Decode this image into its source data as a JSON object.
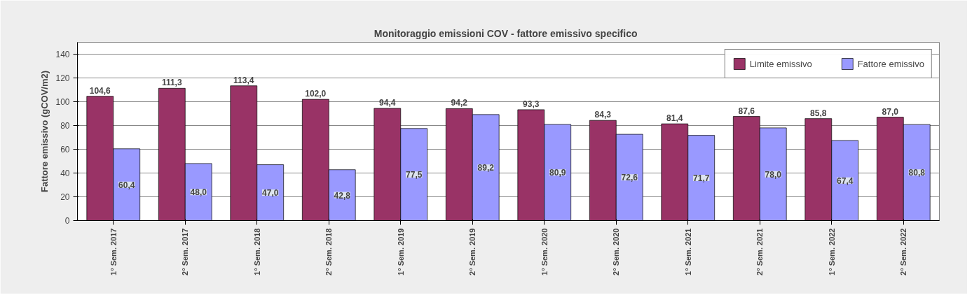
{
  "chart_data": {
    "type": "bar",
    "title": "Monitoraggio  emissioni COV  - fattore emissivo specifico",
    "ylabel": "Fattore emissivo (gCOV/m2)",
    "categories": [
      "1° Sem. 2017",
      "2° Sem. 2017",
      "1° Sem. 2018",
      "2° Sem. 2018",
      "1° Sem. 2019",
      "2° Sem. 2019",
      "1° Sem. 2020",
      "2° Sem. 2020",
      "1° Sem. 2021",
      "2° Sem. 2021",
      "1° Sem. 2022",
      "2° Sem. 2022"
    ],
    "series": [
      {
        "name": "Limite emissivo",
        "color": "#993366",
        "values": [
          104.6,
          111.3,
          113.4,
          102.0,
          94.4,
          94.2,
          93.3,
          84.3,
          81.4,
          87.6,
          85.8,
          87.0
        ],
        "value_labels": [
          "104,6",
          "111,3",
          "113,4",
          "102,0",
          "94,4",
          "94,2",
          "93,3",
          "84,3",
          "81,4",
          "87,6",
          "85,8",
          "87,0"
        ]
      },
      {
        "name": "Fattore emissivo",
        "color": "#9999ff",
        "values": [
          60.4,
          48.0,
          47.0,
          42.8,
          77.5,
          89.2,
          80.9,
          72.6,
          71.7,
          78.0,
          67.4,
          80.8
        ],
        "value_labels": [
          "60,4",
          "48,0",
          "47,0",
          "42,8",
          "77,5",
          "89,2",
          "80,9",
          "72,6",
          "71,7",
          "78,0",
          "67,4",
          "80,8"
        ]
      }
    ],
    "ylim": [
      0,
      150
    ],
    "yticks": [
      0,
      20,
      40,
      60,
      80,
      100,
      120,
      140
    ],
    "grid": "y",
    "legend": "top right"
  }
}
